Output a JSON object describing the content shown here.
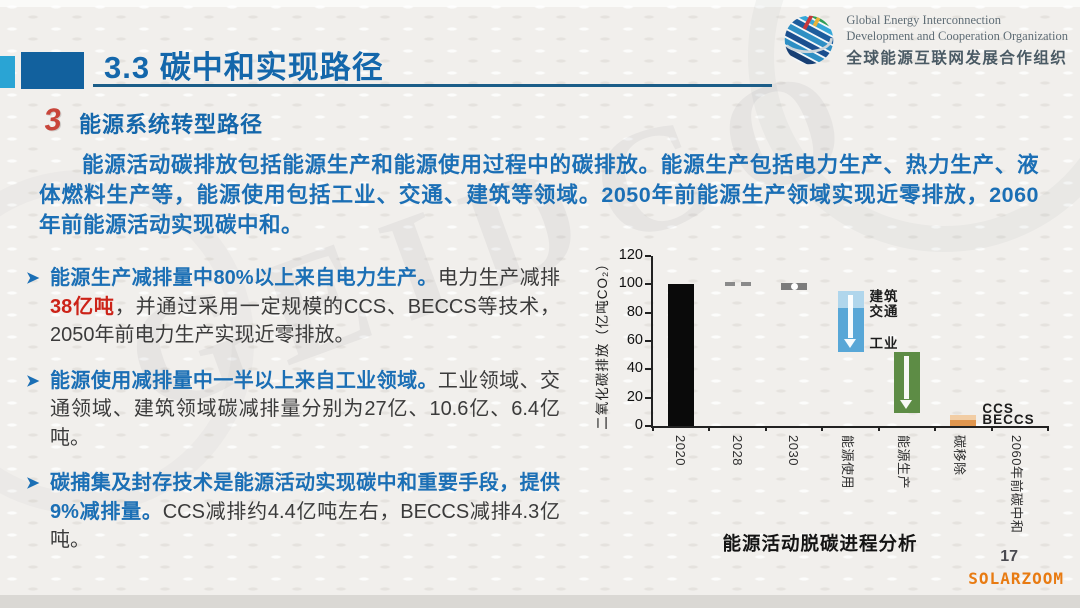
{
  "slide": {
    "title": "3.3 碳中和实现路径",
    "page_number": "17",
    "watermark": "GEIDCO",
    "footer_brand": "SOLARZOOM"
  },
  "logo": {
    "name": "geidco-logo",
    "line1": "Global Energy Interconnection",
    "line2": "Development and Cooperation Organization",
    "line3": "全球能源互联网发展合作组织"
  },
  "section": {
    "number": "3",
    "heading": "能源系统转型路径",
    "paragraph": "能源活动碳排放包括能源生产和能源使用过程中的碳排放。能源生产包括电力生产、热力生产、液体燃料生产等，能源使用包括工业、交通、建筑等领域。2050年前能源生产领域实现近零排放，2060年前能源活动实现碳中和。"
  },
  "bullets": [
    {
      "marker": "➤",
      "lead": "能源生产减排量中80%以上来自电力生产。",
      "body_pre": "电力生产减排",
      "highlight": "38亿吨",
      "body_post": "，并通过采用一定规模的CCS、BECCS等技术，2050年前电力生产实现近零排放。"
    },
    {
      "marker": "➤",
      "lead": "能源使用减排量中一半以上来自工业领域。",
      "body_pre": "工业领域、交通领域、建筑领域碳减排量分别为27亿、10.6亿、6.4亿吨。",
      "highlight": "",
      "body_post": ""
    },
    {
      "marker": "➤",
      "lead": "碳捕集及封存技术是能源活动实现碳中和重要手段，提供9%减排量。",
      "body_pre": "CCS减排约4.4亿吨左右，BECCS减排4.3亿吨。",
      "highlight": "",
      "body_post": ""
    }
  ],
  "chart_data": {
    "type": "bar",
    "subtype": "waterfall",
    "title": "能源活动脱碳进程分析",
    "ylabel": "二氧化碳排放（亿吨CO₂）",
    "ylim": [
      0,
      120
    ],
    "yticks": [
      0,
      20,
      40,
      60,
      80,
      100,
      120
    ],
    "grid": false,
    "categories": [
      "2020",
      "2028",
      "2030",
      "能源使用",
      "能源生产",
      "碳移除",
      "2060年前碳中和"
    ],
    "segments": [
      {
        "category": "2020",
        "from": 0,
        "to": 100,
        "color": "#0a0a0a",
        "style": "solid"
      },
      {
        "category": "2028",
        "from": 99,
        "to": 101,
        "color": "#8a8a8a",
        "style": "dashes"
      },
      {
        "category": "2030",
        "from": 96,
        "to": 101,
        "color": "#7c7c7c",
        "style": "box-dot"
      },
      {
        "category": "能源使用",
        "from": 52,
        "to": 95,
        "color": "#58a7d7",
        "top_color": "#b0d6ec",
        "top_frac": 0.28,
        "style": "decrease-arrow",
        "labels": [
          {
            "text": "建筑",
            "v": 94
          },
          {
            "text": "交通",
            "v": 83
          },
          {
            "text": "工业",
            "v": 61
          }
        ]
      },
      {
        "category": "能源生产",
        "from": 9,
        "to": 52,
        "color": "#5d8c45",
        "style": "decrease-arrow"
      },
      {
        "category": "碳移除",
        "from": 0,
        "to": 8,
        "color": "#e0964e",
        "top_color": "#f2cda4",
        "top_frac": 0.5,
        "style": "solid",
        "labels": [
          {
            "text": "CCS",
            "v": 12
          },
          {
            "text": "BECCS",
            "v": 4
          }
        ]
      },
      {
        "category": "2060年前碳中和",
        "from": 0,
        "to": 0,
        "color": "none",
        "style": "none"
      }
    ],
    "caption": "能源活动脱碳进程分析"
  }
}
